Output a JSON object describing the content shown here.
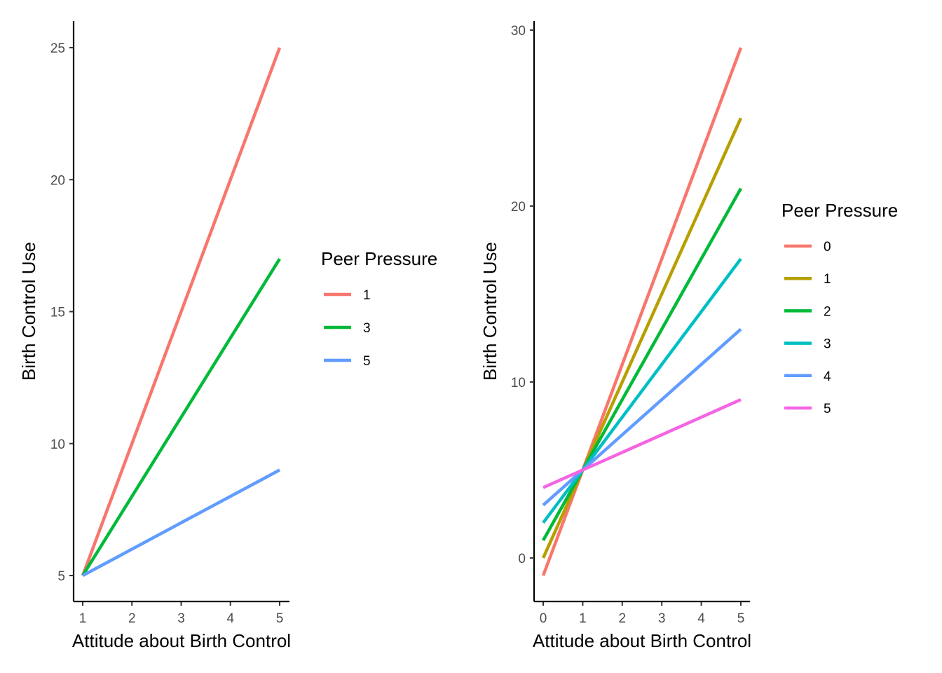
{
  "chart_data": [
    {
      "type": "line",
      "xlabel": "Attitude about Birth Control",
      "ylabel": "Birth Control Use",
      "xlim": [
        1,
        5
      ],
      "ylim": [
        5,
        25
      ],
      "xticks": [
        1,
        2,
        3,
        4,
        5
      ],
      "yticks": [
        5,
        10,
        15,
        20,
        25
      ],
      "grid": false,
      "legend": {
        "title": "Peer Pressure",
        "position": "right"
      },
      "series": [
        {
          "name": "1",
          "color": "#F8766D",
          "x": [
            1,
            5
          ],
          "y": [
            5,
            25
          ]
        },
        {
          "name": "3",
          "color": "#00BA38",
          "x": [
            1,
            5
          ],
          "y": [
            5,
            17
          ]
        },
        {
          "name": "5",
          "color": "#619CFF",
          "x": [
            1,
            5
          ],
          "y": [
            5,
            9
          ]
        }
      ]
    },
    {
      "type": "line",
      "xlabel": "Attitude about Birth Control",
      "ylabel": "Birth Control Use",
      "xlim": [
        0,
        5
      ],
      "ylim": [
        -1,
        29
      ],
      "xticks": [
        0,
        1,
        2,
        3,
        4,
        5
      ],
      "yticks": [
        0,
        10,
        20,
        30
      ],
      "grid": false,
      "legend": {
        "title": "Peer Pressure",
        "position": "right"
      },
      "series": [
        {
          "name": "0",
          "color": "#F8766D",
          "x": [
            0,
            5
          ],
          "y": [
            -1,
            29
          ]
        },
        {
          "name": "1",
          "color": "#B79F00",
          "x": [
            0,
            5
          ],
          "y": [
            0,
            25
          ]
        },
        {
          "name": "2",
          "color": "#00BA38",
          "x": [
            0,
            5
          ],
          "y": [
            1,
            21
          ]
        },
        {
          "name": "3",
          "color": "#00BFC4",
          "x": [
            0,
            5
          ],
          "y": [
            2,
            17
          ]
        },
        {
          "name": "4",
          "color": "#619CFF",
          "x": [
            0,
            5
          ],
          "y": [
            3,
            13
          ]
        },
        {
          "name": "5",
          "color": "#F564E3",
          "x": [
            0,
            5
          ],
          "y": [
            4,
            9
          ]
        }
      ]
    }
  ]
}
